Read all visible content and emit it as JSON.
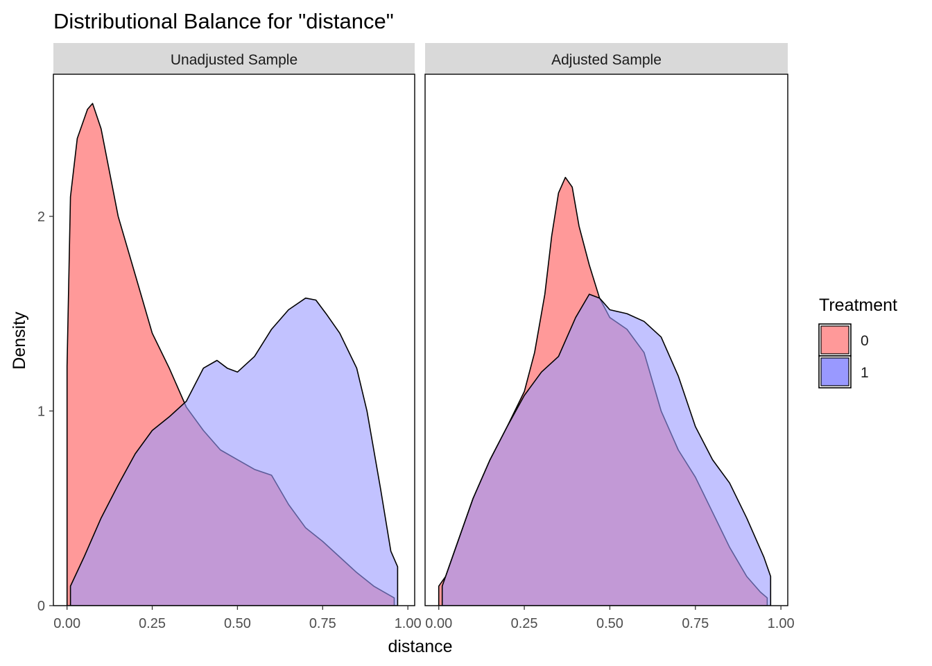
{
  "title": "Distributional Balance for \"distance\"",
  "xlabel": "distance",
  "ylabel": "Density",
  "legend": {
    "title": "Treatment",
    "position": "right",
    "items": [
      {
        "label": "0",
        "color": "#F8766D"
      },
      {
        "label": "1",
        "color": "#6170F8"
      }
    ]
  },
  "colors": {
    "group0_fill": "#ff9999",
    "group1_fill": "#9999ff",
    "overlap": "#9a5ac4",
    "strip": "#d9d9d9"
  },
  "chart_data": {
    "type": "area",
    "xlim": [
      -0.04,
      1.02
    ],
    "ylim": [
      0,
      2.73
    ],
    "x_ticks": [
      "0.00",
      "0.25",
      "0.50",
      "0.75",
      "1.00"
    ],
    "y_ticks": [
      "0",
      "1",
      "2"
    ],
    "grid": false,
    "panels": [
      {
        "label": "Unadjusted Sample",
        "series": [
          {
            "name": "0",
            "points": [
              [
                0.0,
                1.23
              ],
              [
                0.01,
                2.1
              ],
              [
                0.03,
                2.4
              ],
              [
                0.06,
                2.55
              ],
              [
                0.075,
                2.58
              ],
              [
                0.1,
                2.45
              ],
              [
                0.15,
                2.0
              ],
              [
                0.2,
                1.7
              ],
              [
                0.25,
                1.4
              ],
              [
                0.3,
                1.22
              ],
              [
                0.35,
                1.02
              ],
              [
                0.4,
                0.9
              ],
              [
                0.45,
                0.8
              ],
              [
                0.5,
                0.75
              ],
              [
                0.55,
                0.7
              ],
              [
                0.6,
                0.67
              ],
              [
                0.65,
                0.52
              ],
              [
                0.7,
                0.4
              ],
              [
                0.75,
                0.33
              ],
              [
                0.8,
                0.25
              ],
              [
                0.85,
                0.17
              ],
              [
                0.9,
                0.1
              ],
              [
                0.93,
                0.07
              ],
              [
                0.96,
                0.04
              ]
            ]
          },
          {
            "name": "1",
            "points": [
              [
                0.01,
                0.1
              ],
              [
                0.05,
                0.25
              ],
              [
                0.1,
                0.45
              ],
              [
                0.15,
                0.62
              ],
              [
                0.2,
                0.78
              ],
              [
                0.25,
                0.9
              ],
              [
                0.3,
                0.97
              ],
              [
                0.35,
                1.05
              ],
              [
                0.4,
                1.22
              ],
              [
                0.44,
                1.26
              ],
              [
                0.47,
                1.22
              ],
              [
                0.5,
                1.2
              ],
              [
                0.55,
                1.28
              ],
              [
                0.6,
                1.42
              ],
              [
                0.65,
                1.52
              ],
              [
                0.7,
                1.58
              ],
              [
                0.73,
                1.57
              ],
              [
                0.76,
                1.5
              ],
              [
                0.8,
                1.4
              ],
              [
                0.85,
                1.22
              ],
              [
                0.88,
                1.0
              ],
              [
                0.92,
                0.6
              ],
              [
                0.95,
                0.28
              ],
              [
                0.97,
                0.2
              ]
            ]
          }
        ]
      },
      {
        "label": "Adjusted Sample",
        "series": [
          {
            "name": "0",
            "points": [
              [
                0.0,
                0.1
              ],
              [
                0.02,
                0.15
              ],
              [
                0.05,
                0.3
              ],
              [
                0.1,
                0.55
              ],
              [
                0.15,
                0.75
              ],
              [
                0.2,
                0.92
              ],
              [
                0.25,
                1.1
              ],
              [
                0.28,
                1.3
              ],
              [
                0.31,
                1.6
              ],
              [
                0.33,
                1.9
              ],
              [
                0.35,
                2.12
              ],
              [
                0.37,
                2.2
              ],
              [
                0.39,
                2.15
              ],
              [
                0.41,
                1.95
              ],
              [
                0.44,
                1.75
              ],
              [
                0.47,
                1.58
              ],
              [
                0.5,
                1.48
              ],
              [
                0.55,
                1.42
              ],
              [
                0.6,
                1.3
              ],
              [
                0.65,
                1.0
              ],
              [
                0.7,
                0.8
              ],
              [
                0.75,
                0.66
              ],
              [
                0.8,
                0.48
              ],
              [
                0.85,
                0.3
              ],
              [
                0.9,
                0.15
              ],
              [
                0.94,
                0.07
              ],
              [
                0.96,
                0.04
              ]
            ]
          },
          {
            "name": "1",
            "points": [
              [
                0.01,
                0.1
              ],
              [
                0.05,
                0.3
              ],
              [
                0.1,
                0.55
              ],
              [
                0.15,
                0.75
              ],
              [
                0.2,
                0.92
              ],
              [
                0.25,
                1.08
              ],
              [
                0.3,
                1.2
              ],
              [
                0.35,
                1.28
              ],
              [
                0.4,
                1.48
              ],
              [
                0.44,
                1.6
              ],
              [
                0.47,
                1.58
              ],
              [
                0.5,
                1.52
              ],
              [
                0.55,
                1.5
              ],
              [
                0.6,
                1.46
              ],
              [
                0.65,
                1.38
              ],
              [
                0.7,
                1.18
              ],
              [
                0.75,
                0.92
              ],
              [
                0.8,
                0.75
              ],
              [
                0.85,
                0.63
              ],
              [
                0.9,
                0.45
              ],
              [
                0.95,
                0.25
              ],
              [
                0.97,
                0.15
              ]
            ]
          }
        ]
      }
    ]
  }
}
